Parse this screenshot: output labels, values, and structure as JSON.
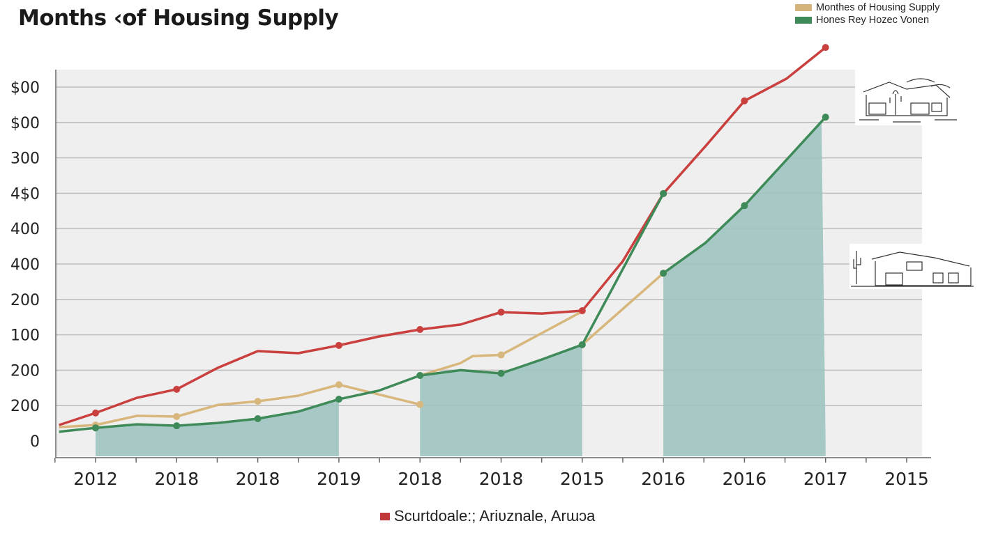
{
  "chart_data": {
    "type": "line",
    "title": "Months ‹of Housing Supply",
    "x_tick_labels": [
      "2012",
      "2018",
      "2018",
      "2019",
      "2018",
      "2018",
      "2015",
      "2016",
      "2016",
      "2017",
      "2015"
    ],
    "y_tick_labels": [
      "0",
      "200",
      "200",
      "100",
      "200",
      "400",
      "400",
      "4$0",
      "300",
      "$00",
      "$00"
    ],
    "ylim": [
      0,
      11.5
    ],
    "grid": true,
    "legend_position": "top-right",
    "legend": [
      {
        "label": "Monthes of Housing Supply",
        "color": "#d4b47a"
      },
      {
        "label": "Hones Rey Hozec Vonen",
        "color": "#3e8a58"
      }
    ],
    "bottom_legend": {
      "label": "Scurtdoale:; Ariʋznale, Arɯɔa",
      "color": "#c0393b"
    },
    "series": [
      {
        "color": "#c9403f",
        "segments": [
          [
            [
              -0.45,
              0.45
            ],
            [
              0,
              0.79
            ],
            [
              0.51,
              1.22
            ],
            [
              1,
              1.46
            ],
            [
              1.51,
              2.07
            ],
            [
              2,
              2.54
            ],
            [
              2.5,
              2.48
            ],
            [
              3,
              2.7
            ],
            [
              3.49,
              2.95
            ],
            [
              4,
              3.15
            ],
            [
              4.5,
              3.29
            ],
            [
              5,
              3.64
            ],
            [
              5.5,
              3.6
            ],
            [
              6,
              3.68
            ],
            [
              6.5,
              5.08
            ],
            [
              7,
              6.99
            ],
            [
              7.52,
              8.33
            ],
            [
              8,
              9.61
            ],
            [
              8.52,
              10.24
            ],
            [
              9,
              11.12
            ]
          ]
        ],
        "markers": [
          0,
          1,
          3,
          4,
          5,
          6,
          7,
          8,
          9
        ]
      },
      {
        "color": "#d8b77c",
        "segments": [
          [
            [
              -0.45,
              0.39
            ],
            [
              0,
              0.45
            ],
            [
              0.51,
              0.71
            ],
            [
              1,
              0.69
            ],
            [
              1.51,
              1.02
            ],
            [
              2,
              1.12
            ],
            [
              2.5,
              1.28
            ],
            [
              3,
              1.59
            ],
            [
              4,
              1.03
            ]
          ],
          [
            [
              4,
              1.85
            ],
            [
              4.5,
              2.2
            ],
            [
              4.65,
              2.4
            ],
            [
              5,
              2.43
            ],
            [
              6,
              3.66
            ]
          ],
          [
            [
              6,
              2.72
            ],
            [
              7,
              4.74
            ]
          ]
        ],
        "markers": [
          0,
          1,
          2,
          3,
          4,
          5,
          7
        ]
      },
      {
        "color": "#3e8a58",
        "segments": [
          [
            [
              -0.45,
              0.26
            ],
            [
              0,
              0.37
            ],
            [
              0.51,
              0.47
            ],
            [
              1,
              0.43
            ],
            [
              1.51,
              0.51
            ],
            [
              2,
              0.63
            ],
            [
              2.5,
              0.83
            ],
            [
              3,
              1.18
            ],
            [
              3.49,
              1.42
            ],
            [
              4,
              1.85
            ],
            [
              4.5,
              2.0
            ],
            [
              5,
              1.91
            ],
            [
              5.5,
              2.3
            ],
            [
              6,
              2.72
            ],
            [
              7,
              6.99
            ]
          ],
          [
            [
              7,
              4.74
            ],
            [
              7.52,
              5.6
            ],
            [
              8,
              6.65
            ],
            [
              9,
              9.15
            ]
          ]
        ],
        "markers": [
          0,
          1,
          2,
          3,
          4,
          5,
          6,
          7,
          8,
          9
        ]
      }
    ],
    "shaded_bands": [
      [
        0,
        3
      ],
      [
        4,
        6
      ],
      [
        7,
        9
      ]
    ],
    "band_color": "#9fc4c0"
  }
}
